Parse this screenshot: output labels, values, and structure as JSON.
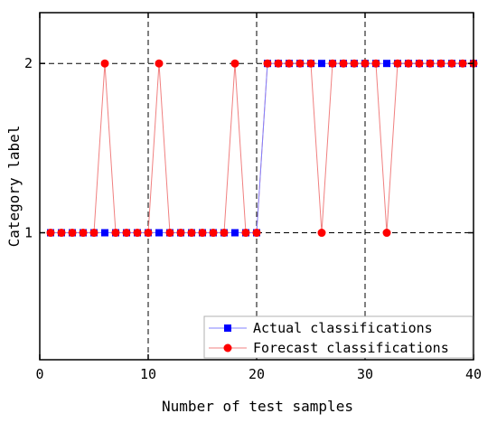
{
  "chart_data": {
    "type": "line",
    "xlabel": "Number of test samples",
    "ylabel": "Category label",
    "xlim": [
      0,
      40
    ],
    "ylim": [
      0.25,
      2.3
    ],
    "xticks": [
      "0",
      "10",
      "20",
      "30",
      "40"
    ],
    "xtick_values": [
      0,
      10,
      20,
      30,
      40
    ],
    "yticks": [
      "1",
      "2"
    ],
    "ytick_values": [
      1,
      2
    ],
    "grid": "dashed at major ticks",
    "legend_position": "bottom-right",
    "colors": {
      "actual": "#0000ff",
      "forecast": "#ff0000",
      "forecast_line": "#f08080"
    },
    "x": [
      1,
      2,
      3,
      4,
      5,
      6,
      7,
      8,
      9,
      10,
      11,
      12,
      13,
      14,
      15,
      16,
      17,
      18,
      19,
      20,
      21,
      22,
      23,
      24,
      25,
      26,
      27,
      28,
      29,
      30,
      31,
      32,
      33,
      34,
      35,
      36,
      37,
      38,
      39,
      40
    ],
    "series": [
      {
        "name": "Actual classifications",
        "marker": "square",
        "values": [
          1,
          1,
          1,
          1,
          1,
          1,
          1,
          1,
          1,
          1,
          1,
          1,
          1,
          1,
          1,
          1,
          1,
          1,
          1,
          1,
          2,
          2,
          2,
          2,
          2,
          2,
          2,
          2,
          2,
          2,
          2,
          2,
          2,
          2,
          2,
          2,
          2,
          2,
          2,
          2
        ]
      },
      {
        "name": "Forecast classifications",
        "marker": "circle",
        "values": [
          1,
          1,
          1,
          1,
          1,
          2,
          1,
          1,
          1,
          1,
          2,
          1,
          1,
          1,
          1,
          1,
          1,
          2,
          1,
          1,
          2,
          2,
          2,
          2,
          2,
          1,
          2,
          2,
          2,
          2,
          2,
          1,
          2,
          2,
          2,
          2,
          2,
          2,
          2,
          2
        ]
      }
    ]
  }
}
